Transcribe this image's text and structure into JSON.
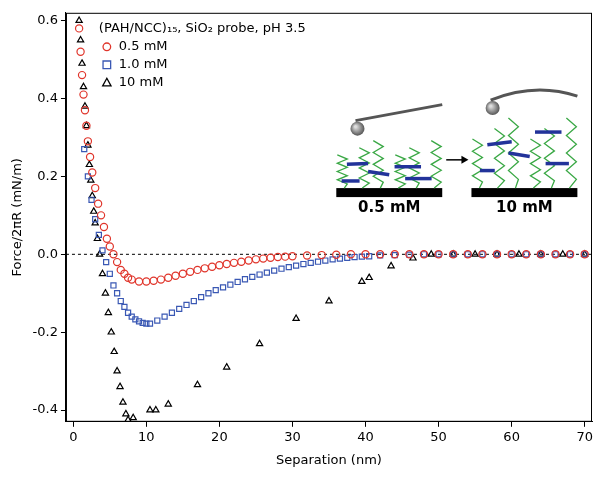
{
  "chart_data": {
    "type": "scatter",
    "x_label": "Separation (nm)",
    "y_label": "Force/2πR (mN/m)",
    "legend_title": "(PAH/NCC)₁₅, SiO₂ probe, pH 3.5",
    "legend": "top-left",
    "grid": false,
    "xlim": [
      -1,
      71
    ],
    "xticks": [
      0,
      10,
      20,
      30,
      40,
      50,
      60,
      70
    ],
    "ylim": [
      -0.43,
      0.62
    ],
    "yticks": [
      -0.4,
      -0.2,
      {
        "value": 0,
        "label": "0.0"
      },
      0.2,
      0.4,
      0.6
    ],
    "reference_lines": [
      {
        "y": 0,
        "line_style": "dashed"
      }
    ],
    "annotations": [
      {
        "text": "0.5 mM"
      },
      {
        "text": "10 mM"
      }
    ],
    "series": [
      {
        "name": "0.5 mM",
        "color": "#e0352b",
        "marker": "circle",
        "x": [
          0.8,
          1.0,
          1.2,
          1.4,
          1.6,
          1.8,
          2.0,
          2.3,
          2.6,
          3.0,
          3.4,
          3.8,
          4.2,
          4.6,
          5.0,
          5.5,
          6.0,
          6.5,
          7.0,
          7.5,
          8.0,
          9.0,
          10.0,
          11.0,
          12.0,
          13.0,
          14.0,
          15.0,
          16.0,
          17.0,
          18.0,
          19.0,
          20.0,
          21.0,
          22.0,
          23.0,
          24.0,
          25.0,
          26.0,
          27.0,
          28.0,
          29.0,
          30.0,
          32.0,
          34.0,
          36.0,
          38.0,
          40.0,
          42.0,
          44.0,
          46.0,
          48.0,
          50.0,
          52.0,
          54.0,
          56.0,
          58.0,
          60.0,
          62.0,
          64.0,
          66.0,
          68.0,
          70.0
        ],
        "values": [
          0.58,
          0.52,
          0.46,
          0.41,
          0.37,
          0.33,
          0.29,
          0.25,
          0.21,
          0.17,
          0.13,
          0.1,
          0.07,
          0.04,
          0.02,
          0.0,
          -0.02,
          -0.04,
          -0.05,
          -0.06,
          -0.065,
          -0.07,
          -0.07,
          -0.068,
          -0.065,
          -0.06,
          -0.055,
          -0.05,
          -0.045,
          -0.04,
          -0.036,
          -0.032,
          -0.028,
          -0.025,
          -0.022,
          -0.019,
          -0.016,
          -0.013,
          -0.011,
          -0.009,
          -0.007,
          -0.006,
          -0.005,
          -0.003,
          -0.002,
          -0.001,
          0.0,
          0.0,
          0.0,
          0.0,
          0.0,
          0.0,
          0.0,
          0.0,
          0.0,
          0.0,
          0.0,
          0.0,
          0.0,
          0.0,
          0.0,
          0.0,
          0.0
        ]
      },
      {
        "name": "1.0 mM",
        "color": "#3a58b4",
        "marker": "square",
        "x": [
          1.5,
          2.0,
          2.5,
          3.0,
          3.5,
          4.0,
          4.5,
          5.0,
          5.5,
          6.0,
          6.5,
          7.0,
          7.5,
          8.0,
          8.5,
          9.0,
          9.5,
          10.0,
          10.5,
          11.5,
          12.5,
          13.5,
          14.5,
          15.5,
          16.5,
          17.5,
          18.5,
          19.5,
          20.5,
          21.5,
          22.5,
          23.5,
          24.5,
          25.5,
          26.5,
          27.5,
          28.5,
          29.5,
          30.5,
          31.5,
          32.5,
          33.5,
          34.5,
          35.5,
          36.5,
          37.5,
          38.5,
          39.5,
          40.5,
          42.0,
          44.0,
          46.0,
          48.0,
          50.0,
          52.0,
          54.0,
          56.0,
          58.0,
          60.0,
          62.0,
          64.0,
          66.0,
          68.0,
          70.0
        ],
        "values": [
          0.27,
          0.2,
          0.14,
          0.09,
          0.05,
          0.01,
          -0.02,
          -0.05,
          -0.08,
          -0.1,
          -0.12,
          -0.135,
          -0.15,
          -0.16,
          -0.167,
          -0.172,
          -0.176,
          -0.178,
          -0.178,
          -0.17,
          -0.16,
          -0.15,
          -0.14,
          -0.13,
          -0.12,
          -0.11,
          -0.1,
          -0.092,
          -0.085,
          -0.078,
          -0.071,
          -0.064,
          -0.058,
          -0.052,
          -0.047,
          -0.042,
          -0.037,
          -0.033,
          -0.029,
          -0.025,
          -0.022,
          -0.019,
          -0.016,
          -0.013,
          -0.011,
          -0.009,
          -0.007,
          -0.006,
          -0.005,
          -0.003,
          -0.002,
          -0.001,
          0.0,
          0.0,
          0.0,
          0.0,
          0.0,
          0.0,
          0.0,
          0.0,
          0.0,
          0.0,
          0.0,
          0.0
        ]
      },
      {
        "name": "10 mM",
        "color": "#000000",
        "marker": "triangle",
        "x": [
          0.8,
          1.0,
          1.2,
          1.4,
          1.6,
          1.8,
          2.0,
          2.2,
          2.4,
          2.6,
          2.8,
          3.0,
          3.3,
          3.6,
          4.0,
          4.4,
          4.8,
          5.2,
          5.6,
          6.0,
          6.4,
          6.8,
          7.2,
          7.5,
          8.2,
          10.5,
          11.3,
          13.0,
          17.0,
          21.0,
          25.5,
          30.5,
          35.0,
          39.5,
          40.5,
          43.5,
          46.5,
          49.0,
          52.0,
          55.0,
          58.0,
          61.0,
          64.0,
          67.0,
          70.0
        ],
        "values": [
          0.6,
          0.55,
          0.49,
          0.43,
          0.38,
          0.33,
          0.28,
          0.23,
          0.19,
          0.15,
          0.11,
          0.08,
          0.04,
          0.0,
          -0.05,
          -0.1,
          -0.15,
          -0.2,
          -0.25,
          -0.3,
          -0.34,
          -0.38,
          -0.41,
          -0.425,
          -0.42,
          -0.4,
          -0.4,
          -0.385,
          -0.335,
          -0.29,
          -0.23,
          -0.165,
          -0.12,
          -0.07,
          -0.06,
          -0.03,
          -0.01,
          0.0,
          0.0,
          0.0,
          0.0,
          0.0,
          0.0,
          0.0,
          0.0
        ]
      }
    ]
  }
}
